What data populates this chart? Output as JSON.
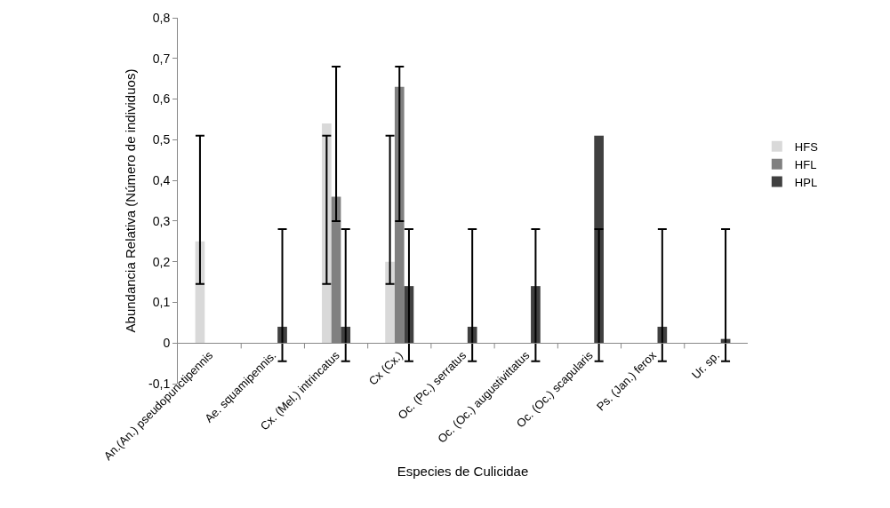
{
  "chart_data": {
    "type": "bar",
    "xlabel": "Especies de Culicidae",
    "ylabel": "Abundancia Relativa (Número de individuos)",
    "categories": [
      "An.(An.) pseudopunctipennis",
      "Ae. squamipennis.",
      "Cx. (Mel.) intrincatus",
      "Cx (Cx.)",
      "Oc. (Pc.) serratus",
      "Oc. (Oc.) augustivittatus",
      "Oc. (Oc.) scapularis",
      "Ps. (Jan.) ferox",
      "Ur. sp."
    ],
    "series": [
      {
        "name": "HFS",
        "color": "#d9d9d9",
        "values": [
          0.25,
          null,
          0.54,
          0.2,
          null,
          null,
          null,
          null,
          null
        ],
        "errors": [
          [
            0.145,
            0.51
          ],
          null,
          [
            0.145,
            0.51
          ],
          [
            0.145,
            0.51
          ],
          null,
          null,
          null,
          null,
          null
        ]
      },
      {
        "name": "HFL",
        "color": "#808080",
        "values": [
          null,
          null,
          0.36,
          0.63,
          null,
          null,
          null,
          null,
          null
        ],
        "errors": [
          null,
          null,
          [
            0.3,
            0.68
          ],
          [
            0.3,
            0.68
          ],
          null,
          null,
          null,
          null,
          null
        ]
      },
      {
        "name": "HPL",
        "color": "#404040",
        "values": [
          null,
          0.04,
          0.04,
          0.14,
          0.04,
          0.14,
          0.51,
          0.04,
          0.01
        ],
        "errors": [
          null,
          [
            -0.045,
            0.28
          ],
          [
            -0.045,
            0.28
          ],
          [
            -0.045,
            0.28
          ],
          [
            -0.045,
            0.28
          ],
          [
            -0.045,
            0.28
          ],
          [
            -0.045,
            0.28
          ],
          [
            -0.045,
            0.28
          ],
          [
            -0.045,
            0.28
          ]
        ]
      }
    ],
    "ylim": [
      -0.1,
      0.8
    ],
    "yticks": [
      {
        "value": -0.1,
        "label": "-0,1"
      },
      {
        "value": 0,
        "label": "0"
      },
      {
        "value": 0.1,
        "label": "0,1"
      },
      {
        "value": 0.2,
        "label": "0,2"
      },
      {
        "value": 0.3,
        "label": "0,3"
      },
      {
        "value": 0.4,
        "label": "0,4"
      },
      {
        "value": 0.5,
        "label": "0,5"
      },
      {
        "value": 0.6,
        "label": "0,6"
      },
      {
        "value": 0.7,
        "label": "0,7"
      },
      {
        "value": 0.8,
        "label": "0,8"
      }
    ],
    "grid": false,
    "legend": "right"
  }
}
